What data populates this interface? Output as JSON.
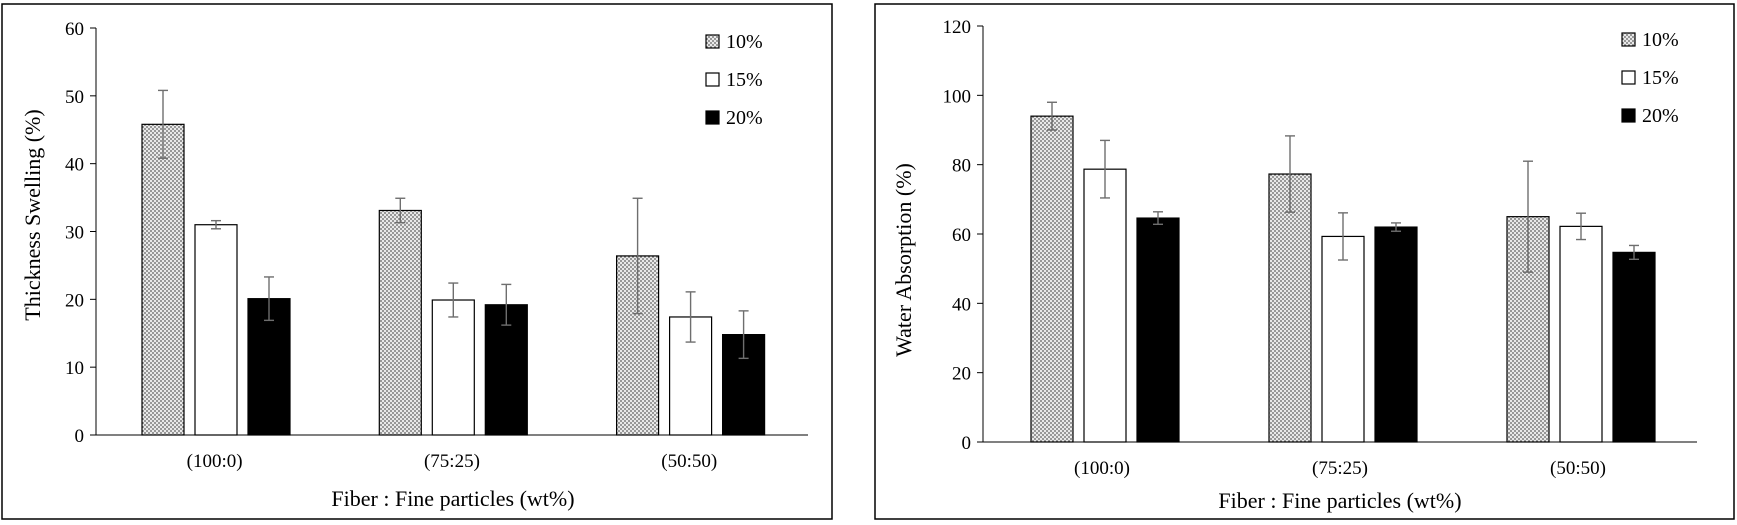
{
  "colors": {
    "s10_pattern": "dots",
    "s15_fill": "#ffffff",
    "s20_fill": "#000000",
    "error_bar": "#6e6e6e"
  },
  "chart_data": [
    {
      "type": "bar",
      "title": "",
      "xlabel": "Fiber : Fine particles (wt%)",
      "ylabel": "Thickness Swelling (%)",
      "ylim": [
        0,
        60
      ],
      "yticks": [
        "0",
        "10",
        "20",
        "30",
        "40",
        "50",
        "60"
      ],
      "categories": [
        "(100:0)",
        "(75:25)",
        "(50:50)"
      ],
      "legend_position": "top-right",
      "grid": false,
      "series": [
        {
          "name": "10%",
          "values": [
            45.8,
            33.1,
            26.4
          ],
          "errors": [
            5.0,
            1.8,
            8.5
          ]
        },
        {
          "name": "15%",
          "values": [
            31.0,
            19.9,
            17.4
          ],
          "errors": [
            0.6,
            2.5,
            3.7
          ]
        },
        {
          "name": "20%",
          "values": [
            20.1,
            19.2,
            14.8
          ],
          "errors": [
            3.2,
            3.0,
            3.5
          ]
        }
      ]
    },
    {
      "type": "bar",
      "title": "",
      "xlabel": "Fiber : Fine particles (wt%)",
      "ylabel": "Water Absorption (%)",
      "ylim": [
        0,
        120
      ],
      "yticks": [
        "0",
        "20",
        "40",
        "60",
        "80",
        "100",
        "120"
      ],
      "categories": [
        "(100:0)",
        "(75:25)",
        "(50:50)"
      ],
      "legend_position": "top-right",
      "grid": false,
      "series": [
        {
          "name": "10%",
          "values": [
            94.0,
            77.3,
            65.0
          ],
          "errors": [
            4.0,
            11.0,
            16.0
          ]
        },
        {
          "name": "15%",
          "values": [
            78.7,
            59.3,
            62.2
          ],
          "errors": [
            8.3,
            6.8,
            3.8
          ]
        },
        {
          "name": "20%",
          "values": [
            64.6,
            62.0,
            54.7
          ],
          "errors": [
            1.8,
            1.2,
            2.0
          ]
        }
      ]
    }
  ]
}
